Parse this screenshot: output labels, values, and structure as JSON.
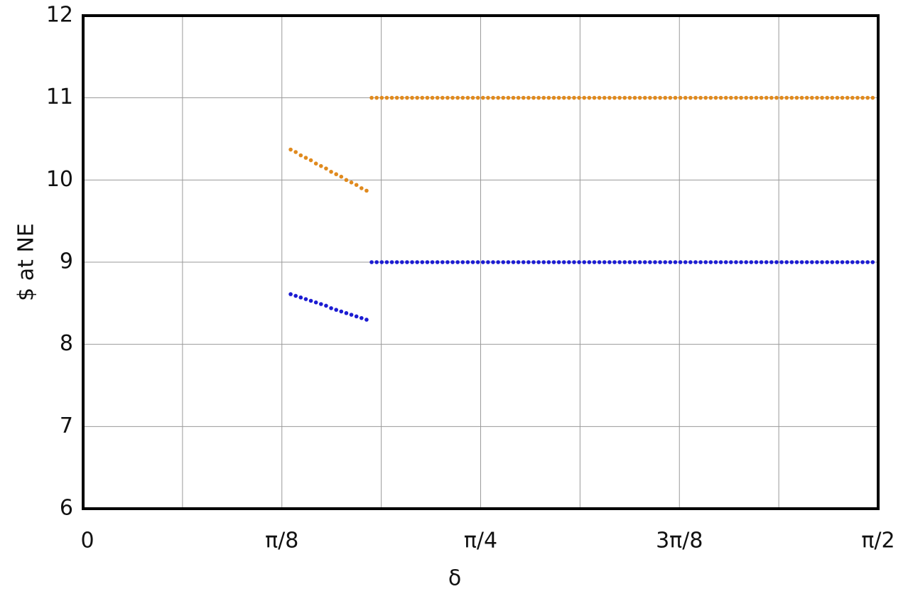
{
  "chart_data": {
    "type": "scatter",
    "xlabel": "δ",
    "ylabel": "$ at NE",
    "xlim": [
      0,
      1.5708
    ],
    "ylim": [
      6,
      12
    ],
    "xticks": [
      0,
      {
        "value": 0.3927,
        "label": "π/8"
      },
      {
        "value": 0.7854,
        "label": "π/4"
      },
      {
        "value": 1.1781,
        "label": "3π/8"
      },
      {
        "value": 1.5708,
        "label": "π/2"
      }
    ],
    "xgrid": [
      0.19635,
      0.58905,
      0.98175,
      1.37445
    ],
    "yticks": [
      6,
      7,
      8,
      9,
      10,
      11,
      12
    ],
    "grid": true,
    "x": [
      0.41,
      0.42,
      0.43,
      0.44,
      0.45,
      0.46,
      0.47,
      0.48,
      0.49,
      0.5,
      0.51,
      0.52,
      0.53,
      0.54,
      0.55,
      0.56,
      0.57,
      0.58,
      0.59,
      0.6,
      0.61,
      0.62,
      0.63,
      0.64,
      0.65,
      0.66,
      0.67,
      0.68,
      0.69,
      0.7,
      0.71,
      0.72,
      0.73,
      0.74,
      0.75,
      0.76,
      0.77,
      0.78,
      0.79,
      0.8,
      0.81,
      0.82,
      0.83,
      0.84,
      0.85,
      0.86,
      0.87,
      0.88,
      0.89,
      0.9,
      0.91,
      0.92,
      0.93,
      0.94,
      0.95,
      0.96,
      0.97,
      0.98,
      0.99,
      1.0,
      1.01,
      1.02,
      1.03,
      1.04,
      1.05,
      1.06,
      1.07,
      1.08,
      1.09,
      1.1,
      1.11,
      1.12,
      1.13,
      1.14,
      1.15,
      1.16,
      1.17,
      1.18,
      1.19,
      1.2,
      1.21,
      1.22,
      1.23,
      1.24,
      1.25,
      1.26,
      1.27,
      1.28,
      1.29,
      1.3,
      1.31,
      1.32,
      1.33,
      1.34,
      1.35,
      1.36,
      1.37,
      1.38,
      1.39,
      1.4,
      1.41,
      1.42,
      1.43,
      1.44,
      1.45,
      1.46,
      1.47,
      1.48,
      1.49,
      1.5,
      1.51,
      1.52,
      1.53,
      1.54,
      1.55,
      1.56
    ],
    "series": [
      {
        "color": "#e08a1e",
        "values": [
          10.37,
          10.34,
          10.3,
          10.27,
          10.24,
          10.2,
          10.17,
          10.14,
          10.1,
          10.07,
          10.04,
          10.0,
          9.97,
          9.94,
          9.9,
          9.87,
          11,
          11,
          11,
          11,
          11,
          11,
          11,
          11,
          11,
          11,
          11,
          11,
          11,
          11,
          11,
          11,
          11,
          11,
          11,
          11,
          11,
          11,
          11,
          11,
          11,
          11,
          11,
          11,
          11,
          11,
          11,
          11,
          11,
          11,
          11,
          11,
          11,
          11,
          11,
          11,
          11,
          11,
          11,
          11,
          11,
          11,
          11,
          11,
          11,
          11,
          11,
          11,
          11,
          11,
          11,
          11,
          11,
          11,
          11,
          11,
          11,
          11,
          11,
          11,
          11,
          11,
          11,
          11,
          11,
          11,
          11,
          11,
          11,
          11,
          11,
          11,
          11,
          11,
          11,
          11,
          11,
          11,
          11,
          11,
          11,
          11,
          11,
          11,
          11,
          11,
          11,
          11,
          11,
          11,
          11,
          11,
          11,
          11,
          11,
          11
        ]
      },
      {
        "color": "#1c1cd2",
        "values": [
          8.61,
          8.59,
          8.57,
          8.55,
          8.53,
          8.51,
          8.49,
          8.47,
          8.44,
          8.42,
          8.4,
          8.38,
          8.36,
          8.34,
          8.32,
          8.3,
          9,
          9,
          9,
          9,
          9,
          9,
          9,
          9,
          9,
          9,
          9,
          9,
          9,
          9,
          9,
          9,
          9,
          9,
          9,
          9,
          9,
          9,
          9,
          9,
          9,
          9,
          9,
          9,
          9,
          9,
          9,
          9,
          9,
          9,
          9,
          9,
          9,
          9,
          9,
          9,
          9,
          9,
          9,
          9,
          9,
          9,
          9,
          9,
          9,
          9,
          9,
          9,
          9,
          9,
          9,
          9,
          9,
          9,
          9,
          9,
          9,
          9,
          9,
          9,
          9,
          9,
          9,
          9,
          9,
          9,
          9,
          9,
          9,
          9,
          9,
          9,
          9,
          9,
          9,
          9,
          9,
          9,
          9,
          9,
          9,
          9,
          9,
          9,
          9,
          9,
          9,
          9,
          9,
          9,
          9,
          9,
          9,
          9,
          9,
          9
        ]
      }
    ]
  }
}
